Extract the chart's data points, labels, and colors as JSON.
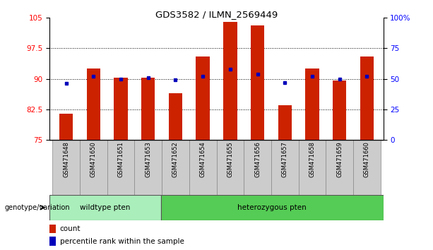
{
  "title": "GDS3582 / ILMN_2569449",
  "samples": [
    "GSM471648",
    "GSM471650",
    "GSM471651",
    "GSM471653",
    "GSM471652",
    "GSM471654",
    "GSM471655",
    "GSM471656",
    "GSM471657",
    "GSM471658",
    "GSM471659",
    "GSM471660"
  ],
  "counts": [
    81.5,
    92.5,
    90.2,
    90.3,
    86.5,
    95.5,
    104.0,
    103.0,
    83.5,
    92.5,
    89.5,
    95.5
  ],
  "percentiles": [
    46,
    52,
    50,
    51,
    49,
    52,
    58,
    54,
    47,
    52,
    50,
    52
  ],
  "wildtype_count": 4,
  "ylim_left": [
    75,
    105
  ],
  "ylim_right": [
    0,
    100
  ],
  "yticks_left": [
    75,
    82.5,
    90,
    97.5,
    105
  ],
  "ytick_labels_left": [
    "75",
    "82.5",
    "90",
    "97.5",
    "105"
  ],
  "yticks_right": [
    0,
    25,
    50,
    75,
    100
  ],
  "ytick_labels_right": [
    "0",
    "25",
    "50",
    "75",
    "100%"
  ],
  "bar_color": "#cc2200",
  "dot_color": "#0000bb",
  "wildtype_label": "wildtype pten",
  "heterozygous_label": "heterozygous pten",
  "wildtype_color": "#aaeebb",
  "heterozygous_color": "#55cc55",
  "genotype_label": "genotype/variation",
  "legend_count": "count",
  "legend_percentile": "percentile rank within the sample",
  "bar_width": 0.5,
  "grid_yticks": [
    82.5,
    90,
    97.5
  ]
}
